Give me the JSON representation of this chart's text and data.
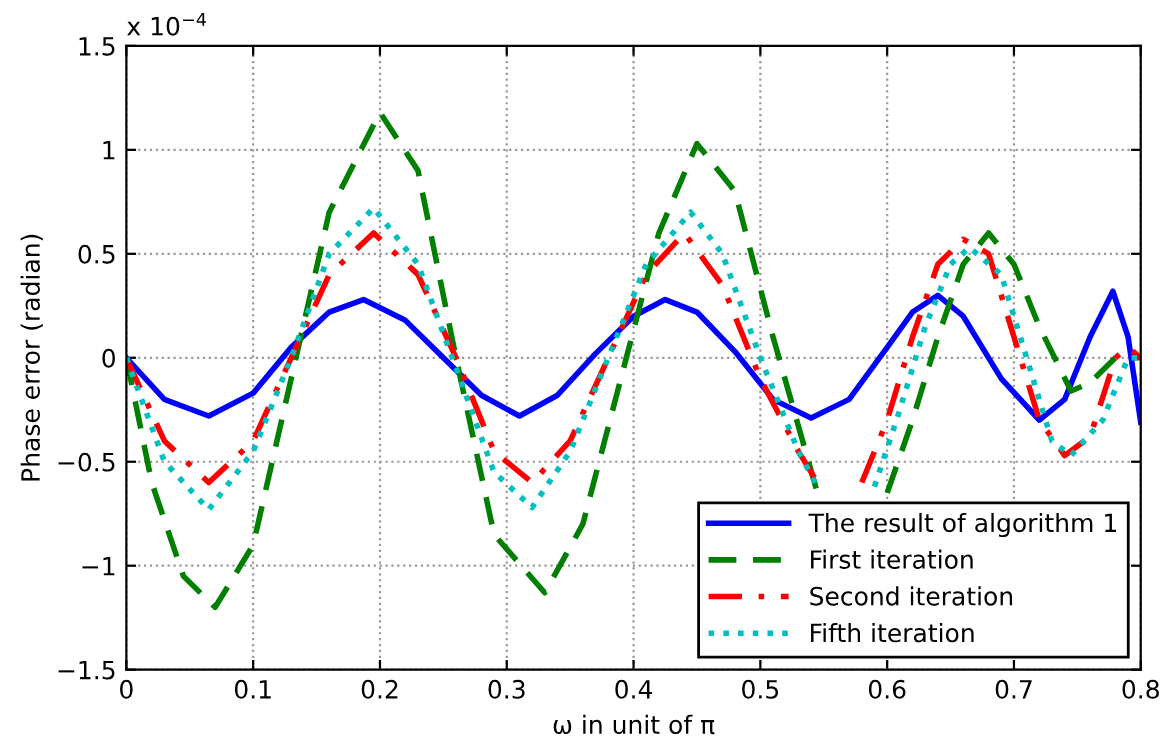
{
  "chart_data": {
    "type": "line",
    "xlabel": "ω in unit of π",
    "ylabel": "Phase error (radian)",
    "annotations": [
      "x 10$^{−4}$"
    ],
    "xlim": [
      0,
      0.8
    ],
    "xticks": [
      0,
      0.1,
      0.2,
      0.3,
      0.4,
      0.5,
      0.6,
      0.7,
      0.8
    ],
    "ylim": [
      -1.5,
      1.5
    ],
    "yticks": [
      -1.5,
      -1,
      -0.5,
      0,
      0.5,
      1,
      1.5
    ],
    "grid": true,
    "legend": "bottom right",
    "series": [
      {
        "name": "The result of algorithm 1",
        "color": "#0000ff",
        "line_style": "solid",
        "x": [
          0,
          0.03,
          0.065,
          0.1,
          0.13,
          0.16,
          0.187,
          0.22,
          0.25,
          0.28,
          0.31,
          0.34,
          0.37,
          0.4,
          0.425,
          0.45,
          0.48,
          0.51,
          0.54,
          0.57,
          0.6,
          0.62,
          0.64,
          0.66,
          0.69,
          0.72,
          0.74,
          0.76,
          0.778,
          0.79,
          0.8
        ],
        "values": [
          0,
          -0.2,
          -0.28,
          -0.17,
          0.05,
          0.22,
          0.28,
          0.18,
          0,
          -0.18,
          -0.28,
          -0.18,
          0.02,
          0.2,
          0.28,
          0.22,
          0.03,
          -0.2,
          -0.29,
          -0.2,
          0.05,
          0.22,
          0.3,
          0.2,
          -0.1,
          -0.3,
          -0.2,
          0.1,
          0.32,
          0.1,
          -0.31
        ]
      },
      {
        "name": "First iteration",
        "color": "#007f00",
        "line_style": "dashed",
        "x": [
          0,
          0.02,
          0.045,
          0.07,
          0.1,
          0.13,
          0.16,
          0.2,
          0.23,
          0.26,
          0.29,
          0.33,
          0.36,
          0.39,
          0.42,
          0.45,
          0.48,
          0.51,
          0.545,
          0.57,
          0.6,
          0.62,
          0.64,
          0.66,
          0.68,
          0.7,
          0.72,
          0.745,
          0.76,
          0.78,
          0.8
        ],
        "values": [
          0,
          -0.6,
          -1.05,
          -1.2,
          -0.9,
          -0.1,
          0.7,
          1.18,
          0.9,
          0,
          -0.85,
          -1.13,
          -0.8,
          -0.1,
          0.6,
          1.03,
          0.8,
          0.1,
          -0.65,
          null,
          -0.65,
          -0.3,
          0.1,
          0.45,
          0.6,
          0.45,
          0.15,
          -0.16,
          -0.12,
          0,
          0
        ]
      },
      {
        "name": "Second iteration",
        "color": "#ff0000",
        "line_style": "dashdot",
        "x": [
          0,
          0.03,
          0.065,
          0.1,
          0.13,
          0.16,
          0.195,
          0.23,
          0.26,
          0.29,
          0.32,
          0.35,
          0.38,
          0.41,
          0.44,
          0.47,
          0.5,
          0.53,
          0.545,
          0.56,
          0.58,
          0.6,
          0.62,
          0.64,
          0.66,
          0.68,
          0.7,
          0.72,
          0.74,
          0.76,
          0.78,
          0.79,
          0.8
        ],
        "values": [
          0,
          -0.4,
          -0.6,
          -0.4,
          0,
          0.4,
          0.6,
          0.4,
          0,
          -0.45,
          -0.6,
          -0.4,
          0,
          0.4,
          0.6,
          0.35,
          -0.1,
          -0.45,
          -0.6,
          null,
          -0.6,
          -0.3,
          0.1,
          0.45,
          0.57,
          0.5,
          0.1,
          -0.3,
          -0.47,
          -0.38,
          0,
          0.05,
          0
        ]
      },
      {
        "name": "Fifth iteration",
        "color": "#00bfbf",
        "line_style": "dotted",
        "x": [
          0,
          0.03,
          0.065,
          0.1,
          0.13,
          0.16,
          0.195,
          0.23,
          0.26,
          0.29,
          0.32,
          0.35,
          0.38,
          0.41,
          0.445,
          0.47,
          0.5,
          0.53,
          0.545,
          0.56,
          0.59,
          0.61,
          0.63,
          0.65,
          0.665,
          0.69,
          0.71,
          0.73,
          0.745,
          0.77,
          0.79,
          0.8
        ],
        "values": [
          0,
          -0.5,
          -0.73,
          -0.45,
          0,
          0.5,
          0.72,
          0.45,
          -0.05,
          -0.55,
          -0.72,
          -0.45,
          0,
          0.45,
          0.7,
          0.5,
          0,
          -0.45,
          -0.62,
          null,
          -0.62,
          -0.25,
          0.15,
          0.45,
          0.53,
          0.4,
          0,
          -0.4,
          -0.47,
          -0.3,
          0,
          0
        ]
      }
    ]
  }
}
